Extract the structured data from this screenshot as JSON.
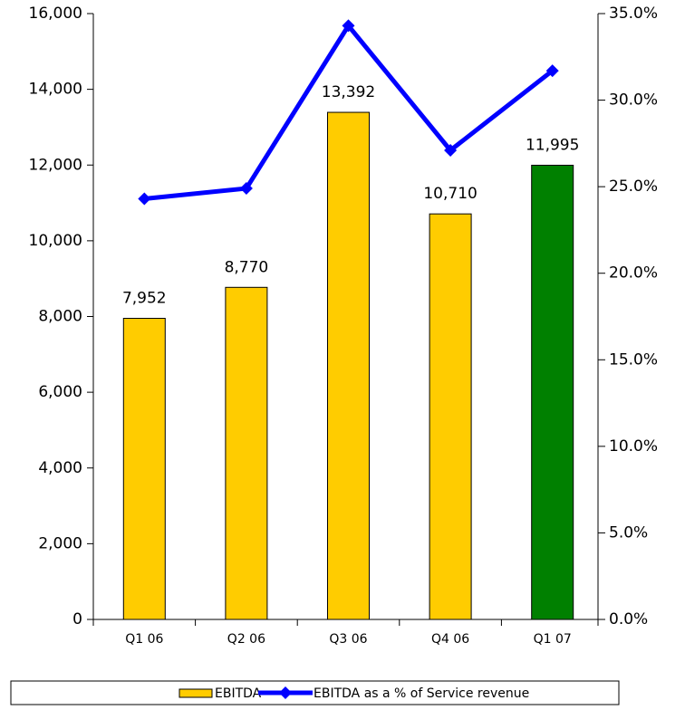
{
  "chart_data": {
    "type": "bar_line",
    "categories": [
      "Q1 06",
      "Q2 06",
      "Q3 06",
      "Q4 06",
      "Q1 07"
    ],
    "series": [
      {
        "name": "EBITDA",
        "type": "bar",
        "colors": [
          "#ffcc00",
          "#ffcc00",
          "#ffcc00",
          "#ffcc00",
          "#008000"
        ],
        "values": [
          7952,
          8770,
          13392,
          10710,
          11995
        ],
        "value_labels": [
          "7,952",
          "8,770",
          "13,392",
          "10,710",
          "11,995"
        ]
      },
      {
        "name": "EBITDA as a % of Service revenue",
        "type": "line",
        "color": "#0000ff",
        "axis": "y2",
        "values": [
          24.3,
          24.9,
          34.3,
          27.1,
          31.7
        ]
      }
    ],
    "ylim": [
      0,
      16000
    ],
    "yticks": [
      0,
      {
        "value": 2000,
        "label": "2,000"
      },
      {
        "value": 4000,
        "label": "4,000"
      },
      {
        "value": 6000,
        "label": "6,000"
      },
      {
        "value": 8000,
        "label": "8,000"
      },
      {
        "value": 10000,
        "label": "10,000"
      },
      {
        "value": 12000,
        "label": "12,000"
      },
      {
        "value": 14000,
        "label": "14,000"
      },
      {
        "value": 16000,
        "label": "16,000"
      }
    ],
    "y2lim": [
      0,
      35
    ],
    "y2ticks": [
      {
        "value": 0,
        "label": "0.0%"
      },
      {
        "value": 5,
        "label": "5.0%"
      },
      {
        "value": 10,
        "label": "10.0%"
      },
      {
        "value": 15,
        "label": "15.0%"
      },
      {
        "value": 20,
        "label": "20.0%"
      },
      {
        "value": 25,
        "label": "25.0%"
      },
      {
        "value": 30,
        "label": "30.0%"
      },
      {
        "value": 35,
        "label": "35.0%"
      }
    ],
    "legend": "bottom"
  }
}
